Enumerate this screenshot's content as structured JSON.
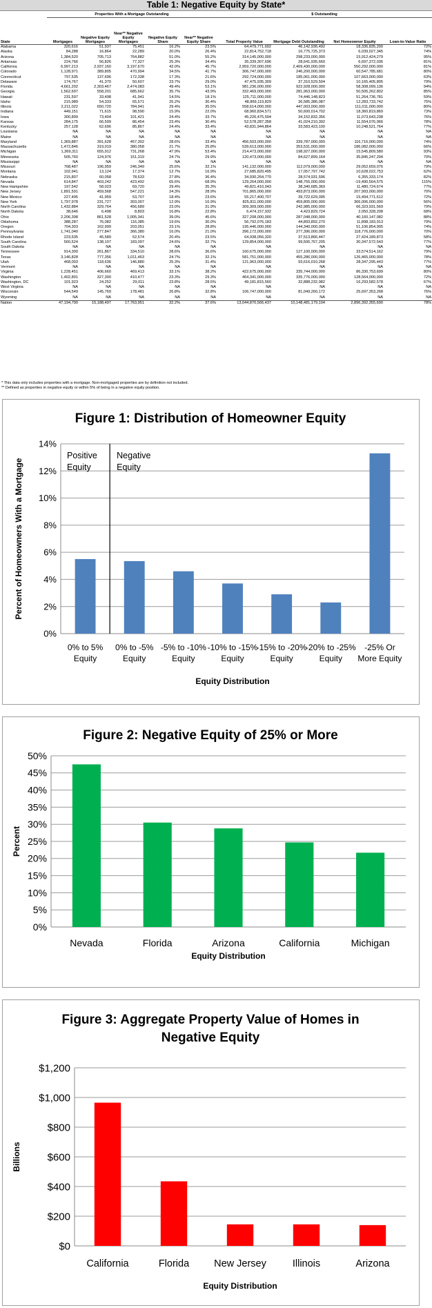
{
  "table": {
    "title": "Table 1: Negative Equity by State*",
    "group_left": "Properties With a Mortgage Outstanding",
    "group_right": "$ Outstanding",
    "headers": [
      "State",
      "Mortgages",
      "Negative Equity Mortgages",
      "Near** Negative Equity Mortgages",
      "Negative Equity Share",
      "Near** Negative Equity Share",
      "Total Property Value",
      "Mortgage Debt Outstanding",
      "Net Homeowner Equity",
      "Loan-to-Value Ratio"
    ],
    "rows": [
      [
        "Alabama",
        "320,616",
        "51,937",
        "75,451",
        "16.2%",
        "23.5%",
        "64,479,771,692",
        "46,142,936,492",
        "18,336,835,200",
        "72%"
      ],
      [
        "Alaska",
        "84,288",
        "16,864",
        "22,289",
        "20.0%",
        "26.4%",
        "22,814,752,718",
        "16,775,725,373",
        "6,039,027,345",
        "74%"
      ],
      [
        "Arizona",
        "1,384,520",
        "705,713",
        "764,882",
        "51.0%",
        "55.2%",
        "314,145,000,000",
        "298,233,000,000",
        "15,912,424,279",
        "95%"
      ],
      [
        "Arkansas",
        "224,766",
        "56,826",
        "77,327",
        "25.3%",
        "34.4%",
        "35,339,307,696",
        "28,641,935,660",
        "6,697,372,036",
        "81%"
      ],
      [
        "California",
        "6,997,213",
        "2,937,160",
        "3,197,670",
        "42.0%",
        "45.7%",
        "2,959,720,000,000",
        "2,409,430,000,000",
        "550,292,000,000",
        "81%"
      ],
      [
        "Colorado",
        "1,128,971",
        "389,805",
        "470,994",
        "34.5%",
        "41.7%",
        "306,747,000,000",
        "246,200,000,000",
        "60,547,785,681",
        "80%"
      ],
      [
        "Connecticut",
        "797,535",
        "137,696",
        "172,338",
        "17.3%",
        "21.6%",
        "292,724,000,000",
        "185,061,000,000",
        "107,663,000,000",
        "63%"
      ],
      [
        "Delaware",
        "174,767",
        "41,370",
        "50,607",
        "23.7%",
        "29.0%",
        "47,475,935,309",
        "37,310,529,504",
        "10,165,405,805",
        "79%"
      ],
      [
        "Florida",
        "4,661,202",
        "2,303,467",
        "2,474,083",
        "49.4%",
        "53.1%",
        "981,236,000,000",
        "922,928,000,000",
        "58,308,099,136",
        "94%"
      ],
      [
        "Georgia",
        "1,562,697",
        "558,201",
        "685,662",
        "35.7%",
        "43.9%",
        "332,469,000,000",
        "281,963,000,000",
        "50,505,262,802",
        "85%"
      ],
      [
        "Hawaii",
        "231,597",
        "33,498",
        "41,941",
        "14.5%",
        "18.1%",
        "125,711,000,000",
        "74,446,148,823",
        "51,264,736,781",
        "59%"
      ],
      [
        "Idaho",
        "215,989",
        "54,333",
        "65,571",
        "25.2%",
        "30.4%",
        "48,869,119,829",
        "36,585,386,087",
        "12,283,733,742",
        "75%"
      ],
      [
        "Illinois",
        "2,211,022",
        "650,720",
        "784,941",
        "29.4%",
        "35.5%",
        "558,614,000,000",
        "447,003,000,000",
        "111,011,000,000",
        "80%"
      ],
      [
        "Indiana",
        "449,151",
        "71,615",
        "98,590",
        "15.9%",
        "22.0%",
        "68,960,834,571",
        "50,600,014,702",
        "18,360,819,869",
        "73%"
      ],
      [
        "Iowa",
        "300,899",
        "73,404",
        "101,421",
        "24.4%",
        "33.7%",
        "45,226,475,594",
        "34,152,832,356",
        "11,073,643,238",
        "76%"
      ],
      [
        "Kansas",
        "284,175",
        "66,599",
        "86,454",
        "23.4%",
        "30.4%",
        "52,578,287,358",
        "41,024,210,392",
        "11,554,076,966",
        "78%"
      ],
      [
        "Kentucky",
        "257,128",
        "62,696",
        "85,867",
        "24.4%",
        "33.4%",
        "43,831,944,864",
        "33,583,423,100",
        "10,248,521,764",
        "77%"
      ],
      [
        "Louisiana",
        "NA",
        "NA",
        "NA",
        "NA",
        "NA",
        "NA",
        "NA",
        "NA",
        "NA"
      ],
      [
        "Maine",
        "NA",
        "NA",
        "NA",
        "NA",
        "NA",
        "NA",
        "NA",
        "NA",
        "NA"
      ],
      [
        "Maryland",
        "1,369,887",
        "391,628",
        "457,302",
        "28.6%",
        "33.4%",
        "456,503,000,000",
        "339,787,000,000",
        "116,716,000,000",
        "74%"
      ],
      [
        "Massachusetts",
        "1,472,846",
        "319,019",
        "380,058",
        "21.7%",
        "25.8%",
        "539,613,000,000",
        "353,531,000,000",
        "186,082,000,000",
        "66%"
      ],
      [
        "Michigan",
        "1,369,311",
        "655,912",
        "731,268",
        "47.9%",
        "53.4%",
        "214,473,000,000",
        "198,927,000,000",
        "15,545,809,580",
        "93%"
      ],
      [
        "Minnesota",
        "505,760",
        "124,976",
        "151,319",
        "24.7%",
        "29.9%",
        "120,473,000,000",
        "84,627,899,164",
        "35,845,247,294",
        "70%"
      ],
      [
        "Mississippi",
        "NA",
        "NA",
        "NA",
        "NA",
        "NA",
        "NA",
        "NA",
        "NA",
        "NA"
      ],
      [
        "Missouri",
        "768,487",
        "196,959",
        "246,349",
        "25.6%",
        "32.1%",
        "141,132,000,000",
        "112,079,000,000",
        "29,052,659,076",
        "79%"
      ],
      [
        "Montana",
        "102,941",
        "13,124",
        "17,374",
        "12.7%",
        "16.9%",
        "27,685,820,495",
        "17,057,797,742",
        "10,628,022,753",
        "62%"
      ],
      [
        "Nebraska",
        "215,807",
        "60,058",
        "78,633",
        "27.8%",
        "36.4%",
        "34,930,264,770",
        "28,574,931,596",
        "6,355,333,174",
        "82%"
      ],
      [
        "Nevada",
        "614,847",
        "403,242",
        "423,492",
        "65.6%",
        "68.9%",
        "129,264,000,000",
        "148,755,000,000",
        "-19,490,564,575",
        "115%"
      ],
      [
        "New Hampshire",
        "197,542",
        "58,023",
        "69,720",
        "29.4%",
        "35.3%",
        "49,821,410,043",
        "38,340,685,369",
        "11,480,724,674",
        "77%"
      ],
      [
        "New Jersey",
        "1,891,591",
        "459,568",
        "547,221",
        "24.3%",
        "28.9%",
        "701,865,000,000",
        "493,873,000,000",
        "207,993,000,000",
        "70%"
      ],
      [
        "New Mexico",
        "227,495",
        "41,959",
        "53,707",
        "18.4%",
        "23.6%",
        "55,217,400,707",
        "39,722,629,095",
        "15,494,771,612",
        "72%"
      ],
      [
        "New York",
        "1,797,978",
        "231,727",
        "303,007",
        "12.9%",
        "16.9%",
        "825,811,000,000",
        "459,805,000,000",
        "366,006,000,000",
        "56%"
      ],
      [
        "North Carolina",
        "1,432,884",
        "329,764",
        "456,689",
        "23.0%",
        "31.9%",
        "309,309,000,000",
        "242,985,000,000",
        "66,323,931,569",
        "79%"
      ],
      [
        "North Dakota",
        "38,646",
        "6,498",
        "8,803",
        "16.8%",
        "22.8%",
        "6,474,157,932",
        "4,423,829,724",
        "2,050,328,208",
        "68%"
      ],
      [
        "Ohio",
        "2,206,398",
        "861,528",
        "1,005,341",
        "39.0%",
        "45.6%",
        "327,208,000,000",
        "287,048,000,000",
        "40,160,147,082",
        "88%"
      ],
      [
        "Oklahoma",
        "388,287",
        "76,082",
        "116,385",
        "19.6%",
        "30.0%",
        "56,792,076,183",
        "44,893,892,270",
        "11,898,183,913",
        "79%"
      ],
      [
        "Oregon",
        "704,303",
        "162,999",
        "203,051",
        "23.1%",
        "28.8%",
        "195,446,000,000",
        "144,340,000,000",
        "51,106,854,905",
        "74%"
      ],
      [
        "Pennsylvania",
        "1,741,040",
        "277,847",
        "366,380",
        "16.0%",
        "21.0%",
        "396,172,000,000",
        "277,396,000,000",
        "118,776,000,000",
        "70%"
      ],
      [
        "Rhode Island",
        "223,535",
        "45,589",
        "52,574",
        "20.4%",
        "23.5%",
        "64,938,056,320",
        "37,513,866,447",
        "27,424,189,873",
        "58%"
      ],
      [
        "South Carolina",
        "560,524",
        "138,107",
        "183,097",
        "24.6%",
        "32.7%",
        "129,854,000,000",
        "99,506,767,205",
        "30,347,572,543",
        "77%"
      ],
      [
        "South Dakota",
        "NA",
        "NA",
        "NA",
        "NA",
        "NA",
        "NA",
        "NA",
        "NA",
        "NA"
      ],
      [
        "Tennessee",
        "914,300",
        "261,867",
        "334,510",
        "28.6%",
        "36.6%",
        "160,675,000,000",
        "127,100,000,000",
        "33,574,514,162",
        "79%"
      ],
      [
        "Texas",
        "3,146,828",
        "777,356",
        "1,011,463",
        "24.7%",
        "32.1%",
        "581,751,000,000",
        "455,286,000,000",
        "126,465,000,000",
        "78%"
      ],
      [
        "Utah",
        "468,003",
        "118,636",
        "146,880",
        "25.3%",
        "31.4%",
        "121,963,000,000",
        "93,616,010,268",
        "28,347,295,443",
        "77%"
      ],
      [
        "Vermont",
        "NA",
        "NA",
        "NA",
        "NA",
        "NA",
        "NA",
        "NA",
        "NA",
        "NA"
      ],
      [
        "Virginia",
        "1,228,451",
        "406,660",
        "469,413",
        "33.1%",
        "38.2%",
        "422,675,000,000",
        "335,744,000,000",
        "86,330,753,699",
        "80%"
      ],
      [
        "Washington",
        "1,402,891",
        "327,300",
        "410,477",
        "23.3%",
        "29.3%",
        "464,341,000,000",
        "335,776,000,000",
        "128,564,000,000",
        "72%"
      ],
      [
        "Washington, DC",
        "101,923",
        "24,252",
        "29,011",
        "23.8%",
        "28.5%",
        "49,181,815,560",
        "32,888,232,982",
        "16,293,582,578",
        "67%"
      ],
      [
        "West Virginia",
        "NA",
        "NA",
        "NA",
        "NA",
        "NA",
        "NA",
        "NA",
        "NA",
        "NA"
      ],
      [
        "Wisconsin",
        "544,549",
        "145,769",
        "178,481",
        "26.8%",
        "32.8%",
        "106,747,000,000",
        "81,049,260,172",
        "25,697,353,268",
        "76%"
      ],
      [
        "Wyoming",
        "NA",
        "NA",
        "NA",
        "NA",
        "NA",
        "NA",
        "NA",
        "NA",
        "NA"
      ],
      [
        "Nation",
        "47,194,790",
        "15,188,497",
        "17,763,951",
        "32.2%",
        "37.6%",
        "13,044,870,566,437",
        "10,148,481,179,104",
        "2,896,392,355,690",
        "78%"
      ]
    ],
    "footnote_1": "* This data only includes properties with a mortgage. Non-mortgaged properties are by definition not included.",
    "footnote_2": "** Defined as properties in negative equity or within 5% of being in a negative equity position."
  },
  "chart_data": [
    {
      "type": "bar",
      "title": "Figure 1: Distribution of Homeowner Equity",
      "xlabel": "Equity Distribution",
      "ylabel": "Percent of Homeowners With a Mortgage",
      "categories": [
        [
          "0% to 5%",
          "Equity"
        ],
        [
          "0% to -5%",
          "Equity"
        ],
        [
          "-5% to -10%",
          "Equity"
        ],
        [
          "-10% to -15%",
          "Equity"
        ],
        [
          "-15% to -20%",
          "Equity"
        ],
        [
          "-20% to -25%",
          "Equity"
        ],
        [
          "-25% Or",
          "More Equity"
        ]
      ],
      "values": [
        5.5,
        5.35,
        4.6,
        3.7,
        2.9,
        2.3,
        13.3
      ],
      "ylim": [
        0,
        14
      ],
      "yticks": [
        "0%",
        "2%",
        "4%",
        "6%",
        "8%",
        "10%",
        "12%",
        "14%"
      ],
      "color": "#4f81bd",
      "annotations": {
        "positive": [
          "Positive",
          "Equity"
        ],
        "negative": [
          "Negative",
          "Equity"
        ]
      },
      "grid": true
    },
    {
      "type": "bar",
      "title": "Figure 2: Negative Equity of 25% or More",
      "xlabel": "Equity Distribution",
      "ylabel": "Percent",
      "categories": [
        "Nevada",
        "Florida",
        "Arizona",
        "California",
        "Michigan"
      ],
      "values": [
        47.5,
        30.5,
        28.8,
        24.7,
        21.7
      ],
      "ylim": [
        0,
        50
      ],
      "yticks": [
        "0%",
        "5%",
        "10%",
        "15%",
        "20%",
        "25%",
        "30%",
        "35%",
        "40%",
        "45%",
        "50%"
      ],
      "color": "#00b050",
      "grid": true
    },
    {
      "type": "bar",
      "title": "Figure 3: Aggregate Property Value of Homes in Negative Equity",
      "title_lines": [
        "Figure 3: Aggregate Property Value of Homes in",
        "Negative Equity"
      ],
      "xlabel": "Equity Distribution",
      "ylabel": "Billions",
      "categories": [
        "California",
        "Florida",
        "New Jersey",
        "Illinois",
        "Arizona"
      ],
      "values": [
        965,
        435,
        145,
        145,
        140
      ],
      "ylim": [
        0,
        1200
      ],
      "yticks": [
        "$0",
        "$200",
        "$400",
        "$600",
        "$800",
        "$1,000",
        "$1,200"
      ],
      "color": "#ff0000",
      "grid": true
    }
  ]
}
